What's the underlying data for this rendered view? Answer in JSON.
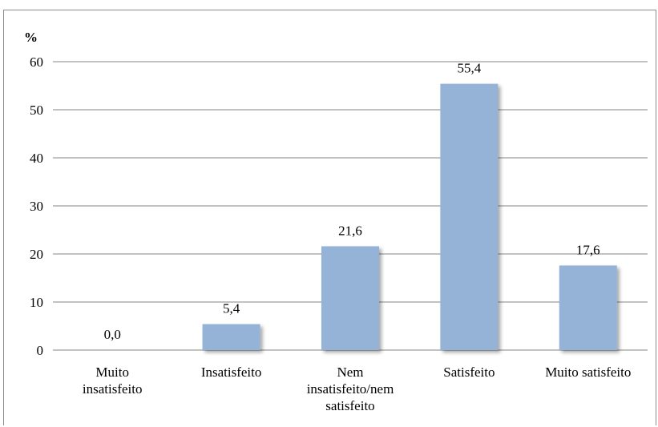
{
  "chart_data": {
    "type": "bar",
    "ylabel": "%",
    "ylim": [
      0,
      60
    ],
    "yticks": [
      0,
      10,
      20,
      30,
      40,
      50,
      60
    ],
    "grid": true,
    "categories": [
      [
        "Muito",
        "insatisfeito"
      ],
      [
        "Insatisfeito"
      ],
      [
        "Nem",
        "insatisfeito/nem",
        "satisfeito"
      ],
      [
        "Satisfeito"
      ],
      [
        "Muito satisfeito"
      ]
    ],
    "values": [
      0.0,
      5.4,
      21.6,
      55.4,
      17.6
    ],
    "data_labels": [
      "0,0",
      "5,4",
      "21,6",
      "55,4",
      "17,6"
    ],
    "bar_color": "#95b3d7",
    "gridline_color": "#868686"
  }
}
